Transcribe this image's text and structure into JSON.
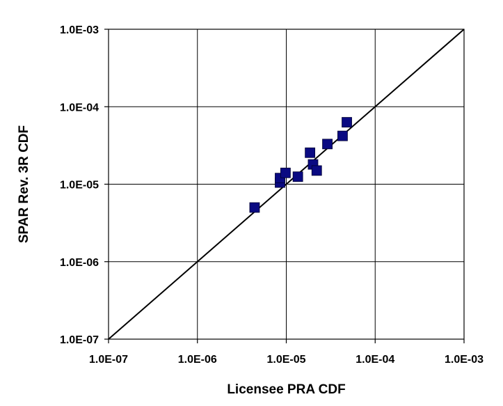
{
  "chart_data": {
    "type": "scatter",
    "xlabel": "Licensee PRA CDF",
    "ylabel": "SPAR Rev. 3R CDF",
    "x_scale": "log",
    "y_scale": "log",
    "xlim": [
      1e-07,
      0.001
    ],
    "ylim": [
      1e-07,
      0.001
    ],
    "x_tick_labels": [
      "1.0E-07",
      "1.0E-06",
      "1.0E-05",
      "1.0E-04",
      "1.0E-03"
    ],
    "y_tick_labels": [
      "1.0E-07",
      "1.0E-06",
      "1.0E-05",
      "1.0E-04",
      "1.0E-03"
    ],
    "grid": true,
    "reference_line": {
      "from": [
        1e-07,
        1e-07
      ],
      "to": [
        0.001,
        0.001
      ]
    },
    "marker": {
      "shape": "square",
      "color": "#0a0a82"
    },
    "line_color": "#000000",
    "series": [
      {
        "points": [
          {
            "x": 4.4e-06,
            "y": 5e-06
          },
          {
            "x": 8.5e-06,
            "y": 1.05e-05
          },
          {
            "x": 8.5e-06,
            "y": 1.2e-05
          },
          {
            "x": 9.8e-06,
            "y": 1.4e-05
          },
          {
            "x": 1.35e-05,
            "y": 1.25e-05
          },
          {
            "x": 1.85e-05,
            "y": 2.55e-05
          },
          {
            "x": 2e-05,
            "y": 1.8e-05
          },
          {
            "x": 2.2e-05,
            "y": 1.5e-05
          },
          {
            "x": 2.9e-05,
            "y": 3.3e-05
          },
          {
            "x": 4.3e-05,
            "y": 4.2e-05
          },
          {
            "x": 4.8e-05,
            "y": 6.3e-05
          }
        ]
      }
    ]
  }
}
